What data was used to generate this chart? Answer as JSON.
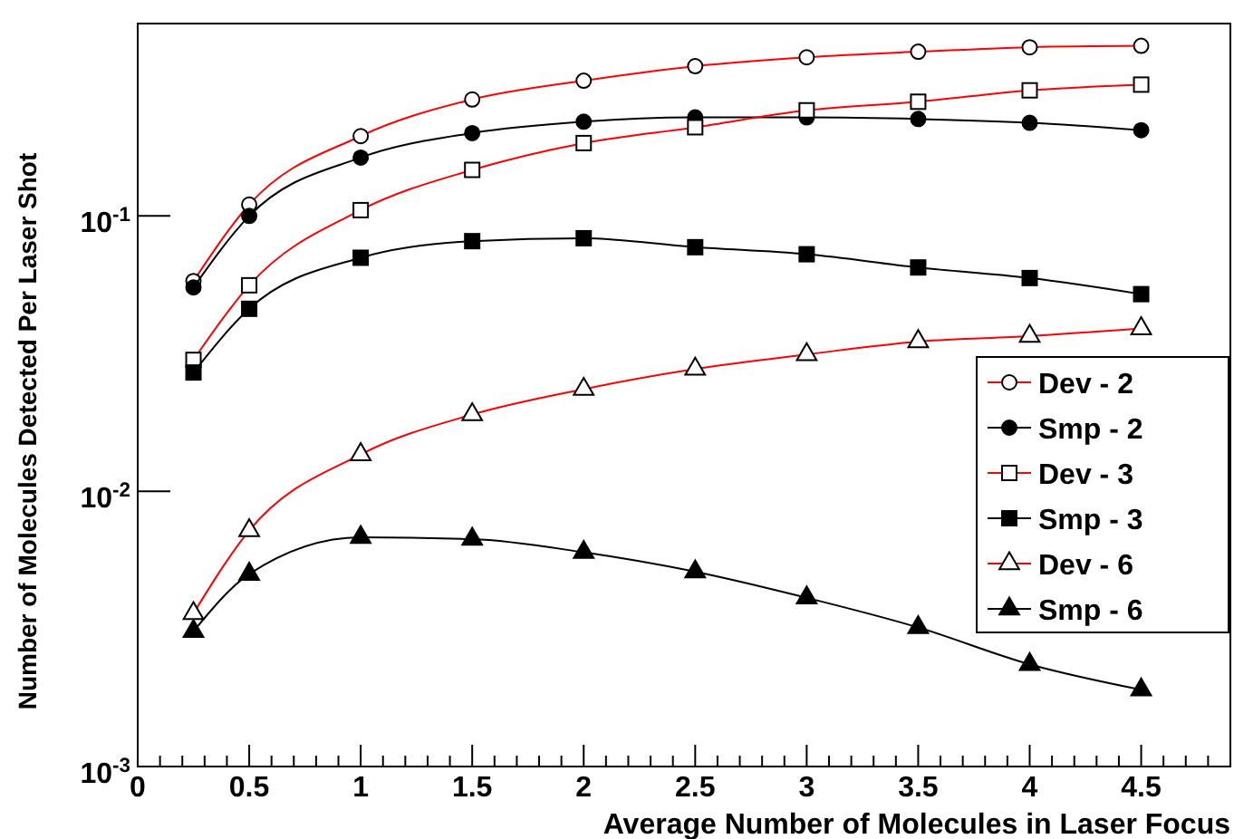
{
  "chart_data": {
    "type": "line",
    "xlabel": "Average Number of Molecules in Laser Focus",
    "ylabel": "Number of Molecules Detected Per Laser Shot",
    "log": "y",
    "grid": false,
    "legend": "right",
    "x": [
      0.25,
      0.5,
      1,
      1.5,
      2,
      2.5,
      3,
      3.5,
      4,
      4.5
    ],
    "xlim": [
      0,
      4.9
    ],
    "ylim": [
      0.001,
      0.5
    ],
    "xticks": [
      0,
      {
        "value": 0.1,
        "label": null
      },
      {
        "value": 0.2,
        "label": null
      },
      {
        "value": 0.3,
        "label": null
      },
      {
        "value": 0.4,
        "label": null
      },
      0.5,
      {
        "value": 0.6,
        "label": null
      },
      {
        "value": 0.7,
        "label": null
      },
      {
        "value": 0.8,
        "label": null
      },
      {
        "value": 0.9,
        "label": null
      },
      1,
      {
        "value": 1.1,
        "label": null
      },
      {
        "value": 1.2,
        "label": null
      },
      {
        "value": 1.3,
        "label": null
      },
      {
        "value": 1.4,
        "label": null
      },
      1.5,
      {
        "value": 1.6,
        "label": null
      },
      {
        "value": 1.7,
        "label": null
      },
      {
        "value": 1.8,
        "label": null
      },
      {
        "value": 1.9,
        "label": null
      },
      2,
      {
        "value": 2.1,
        "label": null
      },
      {
        "value": 2.2,
        "label": null
      },
      {
        "value": 2.3,
        "label": null
      },
      {
        "value": 2.4,
        "label": null
      },
      2.5,
      {
        "value": 2.6,
        "label": null
      },
      {
        "value": 2.7,
        "label": null
      },
      {
        "value": 2.8,
        "label": null
      },
      {
        "value": 2.9,
        "label": null
      },
      3,
      {
        "value": 3.1,
        "label": null
      },
      {
        "value": 3.2,
        "label": null
      },
      {
        "value": 3.3,
        "label": null
      },
      {
        "value": 3.4,
        "label": null
      },
      3.5,
      {
        "value": 3.6,
        "label": null
      },
      {
        "value": 3.7,
        "label": null
      },
      {
        "value": 3.8,
        "label": null
      },
      {
        "value": 3.9,
        "label": null
      },
      4,
      {
        "value": 4.1,
        "label": null
      },
      {
        "value": 4.2,
        "label": null
      },
      {
        "value": 4.3,
        "label": null
      },
      {
        "value": 4.4,
        "label": null
      },
      4.5,
      {
        "value": 4.6,
        "label": null
      },
      {
        "value": 4.7,
        "label": null
      },
      {
        "value": 4.8,
        "label": null
      }
    ],
    "yticks": [
      {
        "value": 0.001,
        "label": "10$^{-3}$"
      },
      {
        "value": 0.01,
        "label": "10$^{-2}$"
      },
      {
        "value": 0.1,
        "label": "10$^{-1}$"
      }
    ],
    "series": [
      {
        "name": "Dev - 2",
        "color": "#ff0000",
        "marker": "circle",
        "values": [
          0.058,
          0.11,
          0.195,
          0.265,
          0.31,
          0.35,
          0.377,
          0.395,
          0.41,
          0.415
        ]
      },
      {
        "name": "Smp - 2",
        "color": "#000000",
        "marker": "circle",
        "values": [
          0.055,
          0.1,
          0.163,
          0.2,
          0.22,
          0.228,
          0.228,
          0.225,
          0.218,
          0.205
        ]
      },
      {
        "name": "Dev - 3",
        "color": "#ff0000",
        "marker": "square",
        "values": [
          0.03,
          0.056,
          0.105,
          0.147,
          0.184,
          0.21,
          0.242,
          0.26,
          0.286,
          0.3
        ]
      },
      {
        "name": "Smp - 3",
        "color": "#000000",
        "marker": "square",
        "values": [
          0.027,
          0.046,
          0.0705,
          0.081,
          0.083,
          0.077,
          0.0726,
          0.065,
          0.0595,
          0.052
        ]
      },
      {
        "name": "Dev - 6",
        "color": "#ff0000",
        "marker": "triangle",
        "values": [
          0.0036,
          0.0072,
          0.0136,
          0.019,
          0.0235,
          0.0278,
          0.0314,
          0.035,
          0.0366,
          0.039
        ]
      },
      {
        "name": "Smp - 6",
        "color": "#000000",
        "marker": "triangle",
        "values": [
          0.0031,
          0.005,
          0.0068,
          0.0067,
          0.006,
          0.0051,
          0.0041,
          0.0032,
          0.00235,
          0.0019
        ]
      }
    ]
  }
}
